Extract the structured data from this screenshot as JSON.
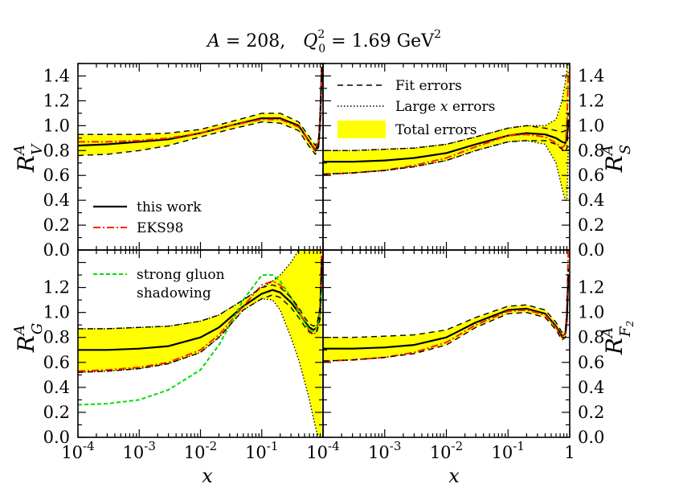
{
  "header": {
    "a_label": "A",
    "a_value": " = 208,",
    "q_label": "Q",
    "q_sub": "0",
    "q_sup": "2",
    "q_value": " = 1.69 GeV",
    "q_unit_sup": "2"
  },
  "legend_errors": {
    "fit": "Fit errors",
    "large_prefix": "Large ",
    "large_var": "x",
    "large_suffix": " errors",
    "total": "Total errors"
  },
  "legend_models": {
    "this_work": "this work",
    "eks98": "EKS98"
  },
  "legend_gluon": {
    "line1": "strong gluon",
    "line2": "shadowing"
  },
  "colors": {
    "band": "#ffff00",
    "eks98": "#ff2200",
    "gluon": "#00dd00",
    "axis": "#000000"
  },
  "chart_data": [
    {
      "type": "line",
      "panel": "top-left",
      "ylabel": "R",
      "ylabel_sup": "A",
      "ylabel_sub": "V",
      "xscale": "log",
      "xlim": [
        0.0001,
        1
      ],
      "ylim": [
        0,
        1.5
      ],
      "y_ticks": [
        "0.0",
        "0.2",
        "0.4",
        "0.6",
        "0.8",
        "1.0",
        "1.2",
        "1.4"
      ],
      "x": [
        0.0001,
        0.0003,
        0.001,
        0.003,
        0.01,
        0.03,
        0.1,
        0.2,
        0.4,
        0.6,
        0.75,
        0.85,
        0.9,
        0.95
      ],
      "series": [
        {
          "name": "this work",
          "style": "solid",
          "values": [
            0.84,
            0.85,
            0.87,
            0.89,
            0.94,
            1.0,
            1.06,
            1.06,
            1.0,
            0.87,
            0.8,
            0.86,
            1.05,
            1.45
          ]
        },
        {
          "name": "EKS98",
          "style": "dashdot",
          "values": [
            0.87,
            0.87,
            0.88,
            0.9,
            0.94,
            1.0,
            1.05,
            1.05,
            0.99,
            0.87,
            0.81,
            0.88,
            1.1,
            1.5
          ]
        },
        {
          "name": "Fit errors upper",
          "style": "dashed",
          "values": [
            0.93,
            0.93,
            0.93,
            0.94,
            0.97,
            1.03,
            1.1,
            1.1,
            1.03,
            0.91,
            0.84,
            0.9,
            1.1,
            1.5
          ]
        },
        {
          "name": "Fit errors lower",
          "style": "dashed",
          "values": [
            0.76,
            0.77,
            0.8,
            0.84,
            0.91,
            0.97,
            1.03,
            1.02,
            0.96,
            0.83,
            0.77,
            0.83,
            1.0,
            1.4
          ]
        },
        {
          "name": "Total errors upper",
          "style": "band",
          "values": [
            0.93,
            0.93,
            0.93,
            0.94,
            0.97,
            1.03,
            1.1,
            1.1,
            1.03,
            0.91,
            0.84,
            0.9,
            1.1,
            1.5
          ]
        },
        {
          "name": "Total errors lower",
          "style": "band",
          "values": [
            0.76,
            0.77,
            0.8,
            0.84,
            0.91,
            0.97,
            1.03,
            1.02,
            0.96,
            0.83,
            0.77,
            0.83,
            1.0,
            1.4
          ]
        }
      ]
    },
    {
      "type": "line",
      "panel": "top-right",
      "ylabel": "R",
      "ylabel_sup": "A",
      "ylabel_sub": "S",
      "xscale": "log",
      "xlim": [
        0.0001,
        1
      ],
      "ylim": [
        0,
        1.5
      ],
      "y_ticks": [
        "0.0",
        "0.2",
        "0.4",
        "0.6",
        "0.8",
        "1.0",
        "1.2",
        "1.4"
      ],
      "x": [
        0.0001,
        0.0003,
        0.001,
        0.003,
        0.01,
        0.03,
        0.1,
        0.2,
        0.4,
        0.6,
        0.75,
        0.85,
        0.9,
        0.95
      ],
      "series": [
        {
          "name": "this work",
          "style": "solid",
          "values": [
            0.71,
            0.71,
            0.72,
            0.74,
            0.78,
            0.85,
            0.92,
            0.94,
            0.93,
            0.9,
            0.87,
            0.86,
            0.9,
            1.05
          ]
        },
        {
          "name": "EKS98",
          "style": "dashdot",
          "values": [
            0.61,
            0.62,
            0.64,
            0.68,
            0.74,
            0.83,
            0.92,
            0.93,
            0.91,
            0.86,
            0.82,
            0.85,
            1.0,
            1.45
          ]
        },
        {
          "name": "Fit errors upper",
          "style": "dashed",
          "values": [
            0.8,
            0.8,
            0.81,
            0.82,
            0.85,
            0.91,
            0.98,
            1.0,
            0.98,
            0.96,
            0.95,
            0.96,
            1.0,
            1.1
          ]
        },
        {
          "name": "Fit errors lower",
          "style": "dashed",
          "values": [
            0.61,
            0.62,
            0.64,
            0.67,
            0.72,
            0.8,
            0.87,
            0.88,
            0.88,
            0.85,
            0.81,
            0.79,
            0.82,
            1.0
          ]
        },
        {
          "name": "Large x errors upper",
          "style": "dotted",
          "values": [
            0.8,
            0.8,
            0.81,
            0.82,
            0.85,
            0.91,
            0.98,
            1.0,
            1.0,
            1.05,
            1.2,
            1.35,
            1.45,
            1.5
          ]
        },
        {
          "name": "Large x errors lower",
          "style": "dotted",
          "values": [
            0.61,
            0.62,
            0.64,
            0.67,
            0.72,
            0.8,
            0.87,
            0.88,
            0.85,
            0.7,
            0.5,
            0.4,
            0.4,
            0.85
          ]
        },
        {
          "name": "Total errors upper",
          "style": "band",
          "values": [
            0.8,
            0.8,
            0.81,
            0.82,
            0.85,
            0.91,
            0.98,
            1.0,
            1.0,
            1.05,
            1.2,
            1.35,
            1.45,
            1.5
          ]
        },
        {
          "name": "Total errors lower",
          "style": "band",
          "values": [
            0.61,
            0.62,
            0.64,
            0.67,
            0.72,
            0.8,
            0.87,
            0.88,
            0.85,
            0.7,
            0.5,
            0.4,
            0.4,
            0.85
          ]
        }
      ]
    },
    {
      "type": "line",
      "panel": "bottom-left",
      "ylabel": "R",
      "ylabel_sup": "A",
      "ylabel_sub": "G",
      "xlabel": "x",
      "xscale": "log",
      "xlim": [
        0.0001,
        1
      ],
      "ylim": [
        0,
        1.5
      ],
      "x_ticks": [
        {
          "base": "10",
          "exp": "-4"
        },
        {
          "base": "10",
          "exp": "-3"
        },
        {
          "base": "10",
          "exp": "-2"
        },
        {
          "base": "10",
          "exp": "-1"
        }
      ],
      "y_ticks": [
        "0.0",
        "0.2",
        "0.4",
        "0.6",
        "0.8",
        "1.0",
        "1.2"
      ],
      "x": [
        0.0001,
        0.0003,
        0.001,
        0.003,
        0.01,
        0.02,
        0.05,
        0.1,
        0.15,
        0.2,
        0.3,
        0.4,
        0.5,
        0.6,
        0.7,
        0.8,
        0.9,
        0.95
      ],
      "series": [
        {
          "name": "this work",
          "style": "solid",
          "values": [
            0.7,
            0.7,
            0.71,
            0.73,
            0.8,
            0.88,
            1.05,
            1.15,
            1.18,
            1.16,
            1.08,
            1.0,
            0.93,
            0.88,
            0.86,
            0.88,
            1.0,
            1.4
          ]
        },
        {
          "name": "EKS98",
          "style": "dashdot",
          "values": [
            0.53,
            0.54,
            0.56,
            0.6,
            0.7,
            0.82,
            1.05,
            1.22,
            1.25,
            1.22,
            1.12,
            1.02,
            0.92,
            0.85,
            0.82,
            0.86,
            1.05,
            1.5
          ]
        },
        {
          "name": "strong gluon shadowing",
          "style": "dashed",
          "values": [
            0.26,
            0.27,
            0.3,
            0.38,
            0.54,
            0.74,
            1.1,
            1.3,
            1.3,
            1.25,
            1.12,
            1.0,
            0.92,
            0.86,
            0.85,
            0.88,
            1.0,
            1.2
          ]
        },
        {
          "name": "Fit errors upper",
          "style": "dashed",
          "values": [
            0.87,
            0.87,
            0.88,
            0.89,
            0.93,
            0.98,
            1.1,
            1.2,
            1.22,
            1.2,
            1.12,
            1.04,
            0.96,
            0.91,
            0.89,
            0.91,
            1.05,
            1.45
          ]
        },
        {
          "name": "Fit errors lower",
          "style": "dashed",
          "values": [
            0.52,
            0.53,
            0.55,
            0.59,
            0.68,
            0.8,
            1.02,
            1.11,
            1.14,
            1.12,
            1.04,
            0.96,
            0.89,
            0.84,
            0.83,
            0.85,
            0.95,
            1.35
          ]
        },
        {
          "name": "Large x errors upper",
          "style": "dotted",
          "values": [
            0.87,
            0.87,
            0.88,
            0.89,
            0.93,
            0.98,
            1.1,
            1.2,
            1.25,
            1.3,
            1.4,
            1.5,
            1.5,
            1.5,
            1.5,
            1.5,
            1.5,
            1.5
          ]
        },
        {
          "name": "Large x errors lower",
          "style": "dotted",
          "values": [
            0.52,
            0.53,
            0.55,
            0.59,
            0.68,
            0.8,
            1.02,
            1.11,
            1.1,
            1.02,
            0.8,
            0.62,
            0.45,
            0.3,
            0.15,
            0.03,
            0.0,
            0.0
          ]
        },
        {
          "name": "Total errors upper",
          "style": "band",
          "values": [
            0.87,
            0.87,
            0.88,
            0.89,
            0.93,
            0.98,
            1.1,
            1.2,
            1.25,
            1.3,
            1.4,
            1.5,
            1.5,
            1.5,
            1.5,
            1.5,
            1.5,
            1.5
          ]
        },
        {
          "name": "Total errors lower",
          "style": "band",
          "values": [
            0.52,
            0.53,
            0.55,
            0.59,
            0.68,
            0.8,
            1.02,
            1.11,
            1.1,
            1.02,
            0.8,
            0.62,
            0.45,
            0.3,
            0.15,
            0.03,
            0.0,
            0.0
          ]
        }
      ]
    },
    {
      "type": "line",
      "panel": "bottom-right",
      "ylabel": "R",
      "ylabel_sup": "A",
      "ylabel_sub": "F",
      "ylabel_subsub": "2",
      "xlabel": "x",
      "xscale": "log",
      "xlim": [
        0.0001,
        1
      ],
      "ylim": [
        0,
        1.5
      ],
      "x_ticks": [
        {
          "base": "10",
          "exp": "-4"
        },
        {
          "base": "10",
          "exp": "-3"
        },
        {
          "base": "10",
          "exp": "-2"
        },
        {
          "base": "10",
          "exp": "-1"
        },
        {
          "base": "1",
          "exp": ""
        }
      ],
      "y_ticks": [
        "0.0",
        "0.2",
        "0.4",
        "0.6",
        "0.8",
        "1.0",
        "1.2"
      ],
      "x": [
        0.0001,
        0.0003,
        0.001,
        0.003,
        0.01,
        0.03,
        0.1,
        0.2,
        0.4,
        0.6,
        0.75,
        0.85,
        0.9,
        0.95
      ],
      "series": [
        {
          "name": "this work",
          "style": "solid",
          "values": [
            0.71,
            0.71,
            0.72,
            0.74,
            0.8,
            0.92,
            1.02,
            1.03,
            0.99,
            0.89,
            0.81,
            0.83,
            0.95,
            1.3
          ]
        },
        {
          "name": "EKS98",
          "style": "dashdot",
          "values": [
            0.61,
            0.62,
            0.64,
            0.68,
            0.76,
            0.9,
            1.01,
            1.02,
            0.98,
            0.88,
            0.8,
            0.84,
            1.05,
            1.5
          ]
        },
        {
          "name": "Fit errors upper",
          "style": "dashed",
          "values": [
            0.8,
            0.8,
            0.81,
            0.82,
            0.86,
            0.96,
            1.05,
            1.06,
            1.02,
            0.92,
            0.84,
            0.86,
            0.98,
            1.35
          ]
        },
        {
          "name": "Fit errors lower",
          "style": "dashed",
          "values": [
            0.61,
            0.62,
            0.64,
            0.67,
            0.74,
            0.88,
            0.99,
            1.0,
            0.96,
            0.86,
            0.78,
            0.8,
            0.92,
            1.25
          ]
        },
        {
          "name": "Total errors upper",
          "style": "band",
          "values": [
            0.8,
            0.8,
            0.81,
            0.82,
            0.86,
            0.96,
            1.05,
            1.06,
            1.02,
            0.92,
            0.84,
            0.86,
            0.98,
            1.35
          ]
        },
        {
          "name": "Total errors lower",
          "style": "band",
          "values": [
            0.61,
            0.62,
            0.64,
            0.67,
            0.74,
            0.88,
            0.99,
            1.0,
            0.96,
            0.86,
            0.78,
            0.8,
            0.92,
            1.25
          ]
        }
      ]
    }
  ]
}
